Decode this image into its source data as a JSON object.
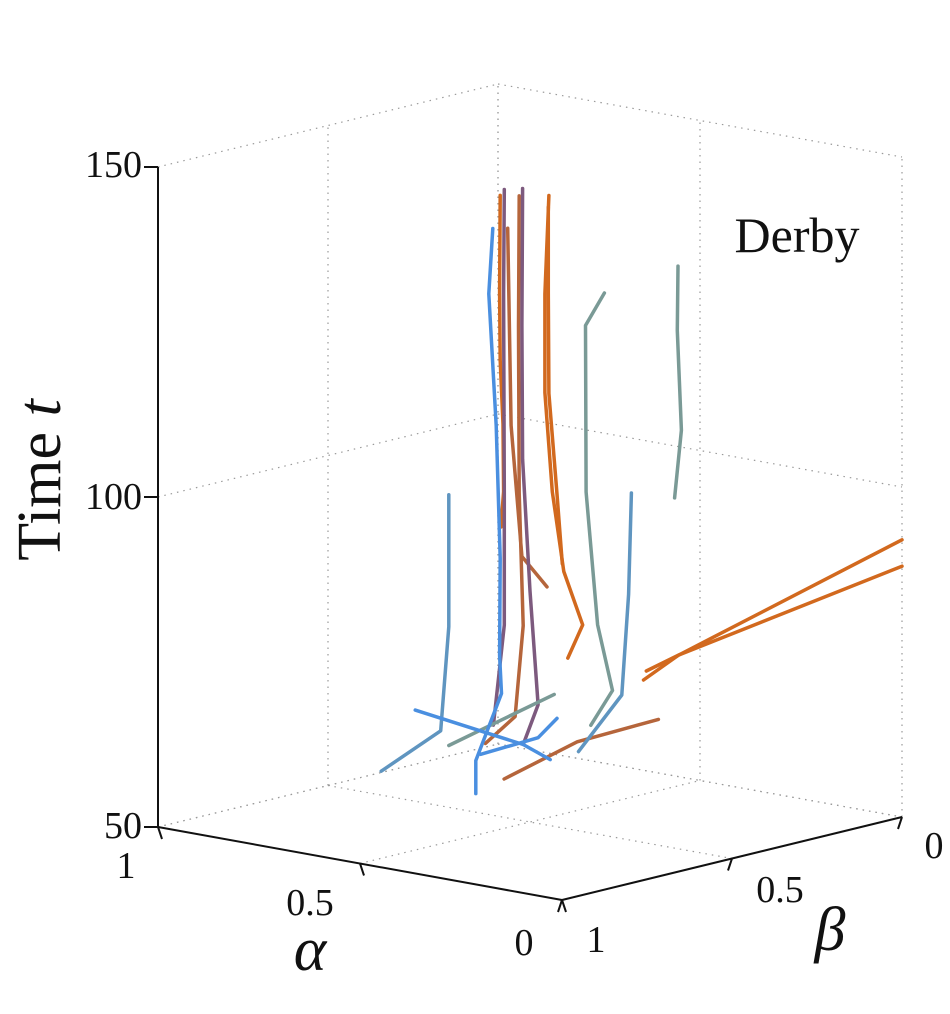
{
  "chart_data": {
    "type": "line",
    "subtype": "3d-trajectories",
    "annotation": "Derby",
    "axes": {
      "z": {
        "label_main": "Time ",
        "label_var": "t",
        "ticks": [
          "50",
          "100",
          "150"
        ],
        "range": [
          50,
          150
        ]
      },
      "alpha": {
        "label": "α",
        "ticks": [
          "1",
          "0.5",
          "0"
        ],
        "range": [
          0,
          1
        ]
      },
      "beta": {
        "label": "β",
        "ticks": [
          "1",
          "0.5",
          "0"
        ],
        "range": [
          0,
          1
        ]
      }
    },
    "grid": true,
    "colors": {
      "orange": "#d2691e",
      "rust": "#b5653b",
      "purple": "#7d5a7e",
      "teal": "#7a9a96",
      "steelblue": "#5f95c0",
      "blue": "#4a8fe0"
    },
    "series": [
      {
        "color": "orange",
        "points": [
          [
            0.53,
            0.55,
            95
          ],
          [
            0.54,
            0.53,
            100
          ],
          [
            0.55,
            0.52,
            110
          ],
          [
            0.54,
            0.54,
            120
          ],
          [
            0.55,
            0.53,
            130
          ],
          [
            0.54,
            0.54,
            145
          ]
        ]
      },
      {
        "color": "orange",
        "points": [
          [
            0.44,
            0.46,
            75
          ],
          [
            0.42,
            0.44,
            80
          ],
          [
            0.45,
            0.46,
            88
          ],
          [
            0.47,
            0.47,
            100
          ],
          [
            0.48,
            0.48,
            115
          ],
          [
            0.48,
            0.48,
            130
          ],
          [
            0.47,
            0.48,
            145
          ]
        ]
      },
      {
        "color": "orange",
        "points": [
          [
            0.32,
            0.38,
            72
          ],
          [
            0.3,
            0.3,
            75
          ],
          [
            0.0,
            0.0,
            92
          ]
        ]
      },
      {
        "color": "orange",
        "points": [
          [
            0.33,
            0.36,
            73
          ],
          [
            0.3,
            0.3,
            75
          ],
          [
            0.0,
            0.0,
            88
          ]
        ]
      },
      {
        "color": "orange",
        "points": [
          [
            0.42,
            0.5,
            90
          ],
          [
            0.45,
            0.48,
            100
          ],
          [
            0.47,
            0.48,
            115
          ],
          [
            0.48,
            0.47,
            130
          ],
          [
            0.48,
            0.47,
            143
          ]
        ]
      },
      {
        "color": "rust",
        "points": [
          [
            0.56,
            0.56,
            62
          ],
          [
            0.52,
            0.52,
            66
          ],
          [
            0.5,
            0.52,
            80
          ],
          [
            0.51,
            0.52,
            100
          ],
          [
            0.52,
            0.51,
            125
          ],
          [
            0.51,
            0.52,
            145
          ]
        ]
      },
      {
        "color": "rust",
        "points": [
          [
            0.48,
            0.6,
            58
          ],
          [
            0.4,
            0.48,
            63
          ],
          [
            0.3,
            0.36,
            66
          ]
        ]
      },
      {
        "color": "rust",
        "points": [
          [
            0.5,
            0.45,
            85
          ],
          [
            0.52,
            0.5,
            90
          ],
          [
            0.53,
            0.52,
            110
          ],
          [
            0.53,
            0.53,
            140
          ]
        ]
      },
      {
        "color": "purple",
        "points": [
          [
            0.5,
            0.52,
            62
          ],
          [
            0.48,
            0.5,
            68
          ],
          [
            0.5,
            0.5,
            85
          ],
          [
            0.51,
            0.51,
            105
          ],
          [
            0.52,
            0.5,
            125
          ],
          [
            0.51,
            0.51,
            146
          ]
        ]
      },
      {
        "color": "purple",
        "points": [
          [
            0.54,
            0.56,
            65
          ],
          [
            0.53,
            0.54,
            80
          ],
          [
            0.53,
            0.54,
            100
          ],
          [
            0.54,
            0.53,
            130
          ],
          [
            0.53,
            0.54,
            146
          ]
        ]
      },
      {
        "color": "teal",
        "points": [
          [
            0.4,
            0.44,
            65
          ],
          [
            0.38,
            0.4,
            70
          ],
          [
            0.4,
            0.42,
            80
          ],
          [
            0.42,
            0.43,
            100
          ],
          [
            0.43,
            0.42,
            125
          ],
          [
            0.4,
            0.4,
            130
          ]
        ]
      },
      {
        "color": "teal",
        "points": [
          [
            0.26,
            0.36,
            100
          ],
          [
            0.26,
            0.34,
            110
          ],
          [
            0.27,
            0.34,
            125
          ],
          [
            0.26,
            0.35,
            135
          ]
        ]
      },
      {
        "color": "teal",
        "points": [
          [
            0.6,
            0.62,
            62
          ],
          [
            0.52,
            0.56,
            66
          ],
          [
            0.44,
            0.5,
            70
          ]
        ]
      },
      {
        "color": "steelblue",
        "points": [
          [
            0.7,
            0.7,
            58
          ],
          [
            0.62,
            0.62,
            64
          ],
          [
            0.6,
            0.62,
            80
          ],
          [
            0.6,
            0.62,
            95
          ],
          [
            0.6,
            0.62,
            100
          ]
        ]
      },
      {
        "color": "steelblue",
        "points": [
          [
            0.38,
            0.5,
            62
          ],
          [
            0.34,
            0.42,
            70
          ],
          [
            0.34,
            0.4,
            85
          ],
          [
            0.35,
            0.38,
            100
          ]
        ]
      },
      {
        "color": "blue",
        "points": [
          [
            0.55,
            0.6,
            55
          ],
          [
            0.55,
            0.6,
            60
          ],
          [
            0.52,
            0.56,
            70
          ],
          [
            0.55,
            0.53,
            75
          ],
          [
            0.54,
            0.54,
            90
          ],
          [
            0.55,
            0.54,
            110
          ],
          [
            0.56,
            0.55,
            130
          ],
          [
            0.55,
            0.55,
            140
          ]
        ]
      },
      {
        "color": "blue",
        "points": [
          [
            0.58,
            0.55,
            60
          ],
          [
            0.48,
            0.5,
            63
          ],
          [
            0.45,
            0.48,
            66
          ]
        ]
      },
      {
        "color": "blue",
        "points": [
          [
            0.7,
            0.6,
            66
          ],
          [
            0.5,
            0.52,
            62
          ],
          [
            0.45,
            0.5,
            60
          ]
        ]
      }
    ]
  }
}
